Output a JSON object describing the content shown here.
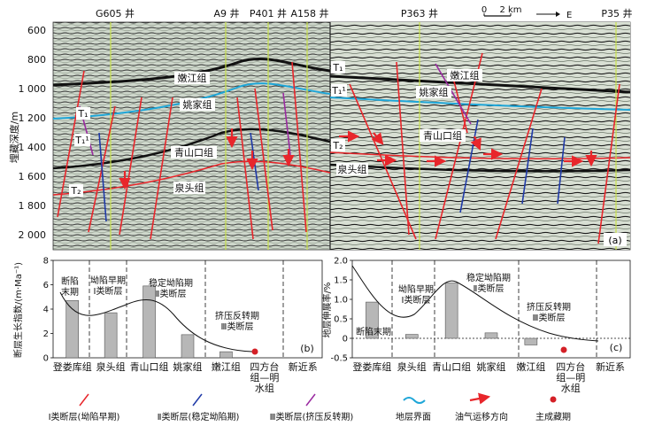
{
  "panel_a": {
    "tag": "(a)",
    "y_axis_label": "埋藏深度/m",
    "depth_ticks": [
      "600",
      "800",
      "1 000",
      "1 200",
      "1 400",
      "1 600",
      "1 800",
      "2 000"
    ],
    "wells": [
      "G605 井",
      "A9 井",
      "P401 井",
      "A158 井",
      "P363 井",
      "P35 井"
    ],
    "scale": {
      "zero": "0",
      "length": "2 km",
      "direction": "E"
    },
    "horizons": [
      "T₁",
      "T₁¹",
      "T₂",
      "T₁",
      "T₁¹",
      "T₂"
    ],
    "formations": [
      "嫩江组",
      "姚家组",
      "青山口组",
      "泉头组",
      "嫩江组",
      "姚家组",
      "青山口组",
      "泉头组"
    ]
  },
  "chart_data": [
    {
      "type": "bar",
      "panel": "(b)",
      "ylabel": "断层生长指数/(m·Ma⁻¹)",
      "ylim": [
        0,
        8
      ],
      "yticks": [
        "0",
        "2",
        "4",
        "6",
        "8"
      ],
      "categories": [
        "登娄库组",
        "泉头组",
        "青山口组",
        "姚家组",
        "嫩江组",
        "四方台组—明水组",
        "新近系"
      ],
      "values": [
        4.7,
        3.7,
        5.9,
        1.9,
        0.5,
        null,
        null
      ],
      "stage_labels": [
        "断陷末期",
        "坳陷早期 Ⅰ类断层",
        "稳定坳陷期 Ⅱ类断层",
        "挤压反转期 Ⅲ类断层"
      ],
      "reservoir_marker": "四方台组—明水组"
    },
    {
      "type": "bar",
      "panel": "(c)",
      "ylabel": "地层伸展率/%",
      "ylim": [
        -0.5,
        2.0
      ],
      "yticks": [
        "-0.5",
        "0",
        "0.5",
        "1.0",
        "1.5",
        "2.0"
      ],
      "categories": [
        "登娄库组",
        "泉头组",
        "青山口组",
        "姚家组",
        "嫩江组",
        "四方台组—明水组",
        "新近系"
      ],
      "values": [
        0.93,
        0.1,
        1.42,
        0.14,
        -0.17,
        null,
        null
      ],
      "stage_labels": [
        "断陷末期",
        "坳陷早期 Ⅰ类断层",
        "稳定坳陷期 Ⅱ类断层",
        "挤压反转期 Ⅲ类断层"
      ],
      "reservoir_marker": "四方台组—明水组"
    }
  ],
  "legend": [
    {
      "label": "Ⅰ类断层(坳陷早期)",
      "symbol": "red-fault-line",
      "color": "#e8262b"
    },
    {
      "label": "Ⅱ类断层(稳定坳陷期)",
      "symbol": "blue-fault-line",
      "color": "#1f3aa8"
    },
    {
      "label": "Ⅲ类断层(挤压反转期)",
      "symbol": "purple-fault-line",
      "color": "#9a2aa0"
    },
    {
      "label": "地层界面",
      "symbol": "cyan-wavy-line",
      "color": "#1ea6d8"
    },
    {
      "label": "油气运移方向",
      "symbol": "red-arrow",
      "color": "#e8262b"
    },
    {
      "label": "主成藏期",
      "symbol": "red-dot",
      "color": "#d42027"
    }
  ]
}
